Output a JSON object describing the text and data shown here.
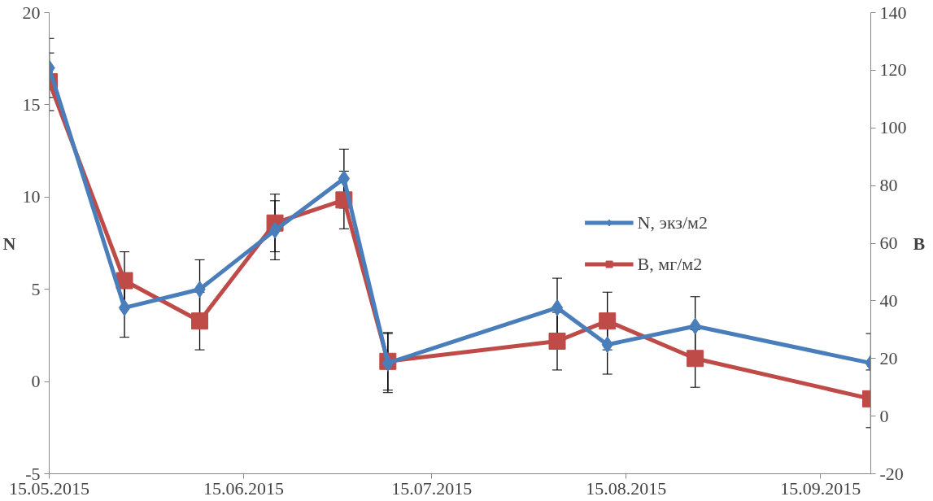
{
  "chart_data": {
    "type": "line",
    "x": [
      "2015-05-15",
      "2015-05-27",
      "2015-06-08",
      "2015-06-20",
      "2015-07-01",
      "2015-07-08",
      "2015-08-04",
      "2015-08-12",
      "2015-08-26",
      "2015-09-23"
    ],
    "series": [
      {
        "name": "N, экз/м2",
        "color": "#4a7ebb",
        "marker": "diamond",
        "values": [
          17,
          4,
          5,
          8.2,
          11,
          1,
          4,
          2,
          3,
          1
        ],
        "errors": [
          1.6,
          1.6,
          1.6,
          1.6,
          1.6,
          1.6,
          1.6,
          1.6,
          1.6,
          1.6
        ]
      },
      {
        "name": "B, мг/м2",
        "color": "#be4b48",
        "marker": "square",
        "axis": "y2",
        "values": [
          116,
          47,
          33,
          67,
          75,
          19,
          26,
          33,
          20,
          6
        ],
        "errors": [
          10,
          10,
          10,
          10,
          10,
          10,
          10,
          10,
          10,
          10
        ]
      }
    ],
    "ylabel": "N",
    "y2label": "B",
    "xlim": [
      "2015-05-15",
      "2015-09-23"
    ],
    "xticks": [
      {
        "value": "2015-05-15",
        "label": "15.05.2015"
      },
      {
        "value": "2015-06-15",
        "label": "15.06.2015"
      },
      {
        "value": "2015-07-15",
        "label": "15.07.2015"
      },
      {
        "value": "2015-08-15",
        "label": "15.08.2015"
      },
      {
        "value": "2015-09-15",
        "label": "15.09.2015"
      }
    ],
    "ylim": [
      -5,
      20
    ],
    "yticks": [
      -5,
      0,
      5,
      10,
      15,
      20
    ],
    "y2lim": [
      -20,
      140
    ],
    "y2ticks": [
      -20,
      0,
      20,
      40,
      60,
      80,
      100,
      120,
      140
    ],
    "legend": "right",
    "grid": false,
    "line_style": "solid"
  }
}
